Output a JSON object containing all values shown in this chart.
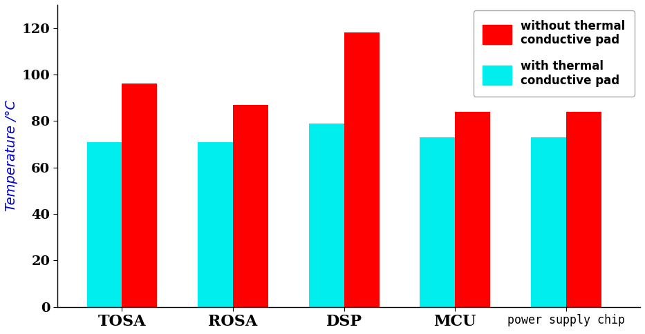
{
  "categories": [
    "TOSA",
    "ROSA",
    "DSP",
    "MCU",
    "power supply chip"
  ],
  "without_pad": [
    96,
    87,
    118,
    84,
    84
  ],
  "with_pad": [
    71,
    71,
    79,
    73,
    73
  ],
  "color_without": "#ff0000",
  "color_with": "#00eeee",
  "ylabel": "Temperature /°C",
  "ylim": [
    0,
    130
  ],
  "yticks": [
    0,
    20,
    40,
    60,
    80,
    100,
    120
  ],
  "legend_without_line1": "without thermal",
  "legend_without_line2": "conductive pad",
  "legend_with_line1": "with thermal",
  "legend_with_line2": "conductive pad",
  "bar_width": 0.38,
  "background_color": "#ffffff",
  "ylabel_color": "#0000cc",
  "tick_color": "#000000",
  "spine_color": "#000000",
  "label_fontsize": 14,
  "tick_fontsize": 13,
  "legend_fontsize": 12,
  "categories_serif": [
    "TOSA",
    "ROSA",
    "DSP",
    "MCU"
  ],
  "last_category": "power supply chip"
}
